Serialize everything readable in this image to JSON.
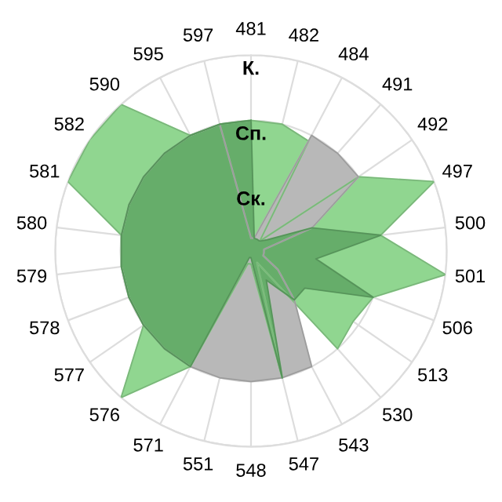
{
  "chart_data": {
    "type": "radar",
    "categories": [
      "481",
      "482",
      "484",
      "491",
      "492",
      "497",
      "500",
      "501",
      "506",
      "513",
      "530",
      "543",
      "547",
      "548",
      "551",
      "571",
      "576",
      "577",
      "578",
      "579",
      "580",
      "581",
      "582",
      "590",
      "595",
      "597"
    ],
    "ylim": [
      0,
      3
    ],
    "yticks": [
      {
        "value": 1,
        "label": "Ск."
      },
      {
        "value": 2,
        "label": "Сп."
      },
      {
        "value": 3,
        "label": "К."
      }
    ],
    "grid": true,
    "marker": "none",
    "series": [
      {
        "color": "#90d690",
        "values": [
          2,
          2,
          1.9,
          0.2,
          2,
          3,
          2,
          3,
          2,
          1.9,
          2,
          0.2,
          2,
          0.2,
          0.2,
          2,
          3,
          2,
          2,
          2,
          2,
          3,
          3,
          3,
          2,
          2
        ]
      },
      {
        "color": "#b8b8b8",
        "values": [
          0.2,
          0.2,
          2,
          2,
          2,
          1,
          0.2,
          0.2,
          0.2,
          0.5,
          1,
          2,
          2,
          2,
          2,
          2,
          2,
          2,
          2,
          2,
          2,
          2,
          2,
          2,
          2,
          2
        ]
      },
      {
        "color": "#66ad6a",
        "values": [
          2,
          0.2,
          0.2,
          0.2,
          0.3,
          1,
          2,
          1,
          2,
          1,
          1,
          0.5,
          2,
          0.1,
          0.1,
          2,
          2,
          2,
          2,
          2,
          2,
          2,
          2,
          2,
          2,
          2
        ]
      }
    ]
  }
}
